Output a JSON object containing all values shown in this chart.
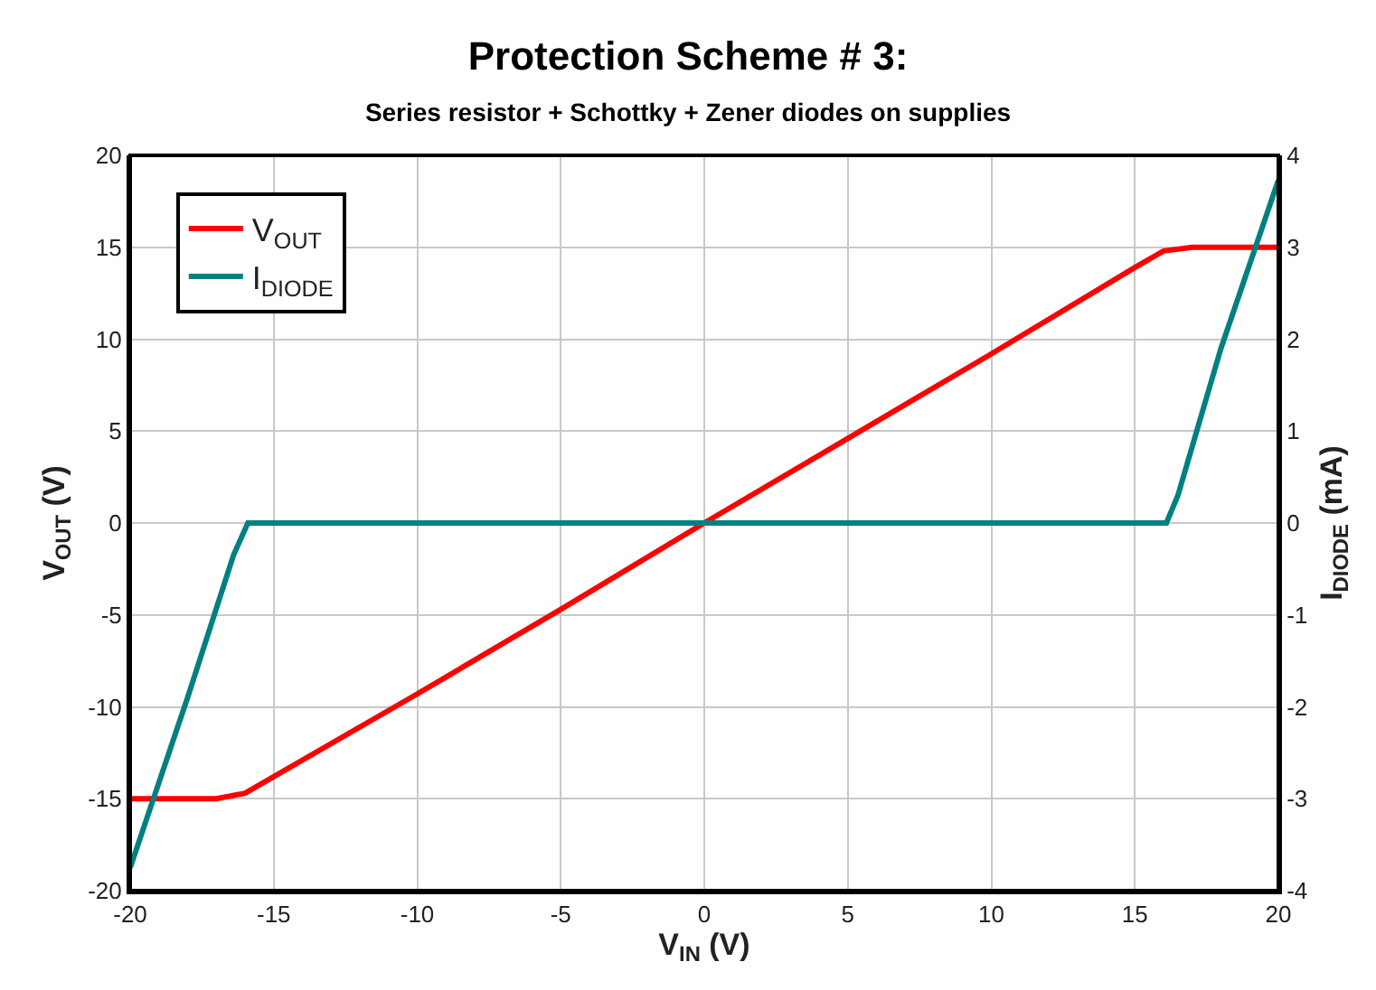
{
  "chart_data": {
    "type": "line",
    "title": "Protection Scheme # 3:",
    "subtitle": "Series resistor + Schottky + Zener diodes on supplies",
    "xlabel": "V$_{IN}$ (V)",
    "ylabel": "V$_{OUT}$ (V)",
    "y2label": "I$_{DIODE}$ (mA)",
    "xlim": [
      -20,
      20
    ],
    "xticks": [
      -20,
      -15,
      -10,
      -5,
      0,
      5,
      10,
      15,
      20
    ],
    "ylim": [
      -20,
      20
    ],
    "yticks": [
      -20,
      -15,
      -10,
      -5,
      0,
      5,
      10,
      15,
      20
    ],
    "y2lim": [
      -4,
      4
    ],
    "y2ticks": [
      -4,
      -3,
      -2,
      -1,
      0,
      1,
      2,
      3,
      4
    ],
    "grid": true,
    "legend": "top left",
    "line_style": "solid",
    "marker": "none",
    "series": [
      {
        "name": "V$_{OUT}$",
        "color": "#ff0000",
        "x": [
          -20,
          -17,
          -16,
          -10,
          -5,
          0,
          5,
          10,
          15,
          16,
          17,
          20
        ],
        "values": [
          -15,
          -15,
          -14.7,
          -9.3,
          -4.7,
          0,
          4.6,
          9.2,
          13.9,
          14.8,
          15,
          15
        ]
      },
      {
        "name": "I$_{DIODE}$",
        "color": "#008080",
        "axis": "y2",
        "x": [
          -20,
          -18,
          -16.4,
          -15.9,
          -14,
          0,
          16,
          16.1,
          16.5,
          18,
          20
        ],
        "values": [
          -3.75,
          -1.9,
          -0.35,
          0,
          0,
          0,
          0,
          0,
          0.3,
          1.9,
          3.73
        ]
      }
    ]
  }
}
